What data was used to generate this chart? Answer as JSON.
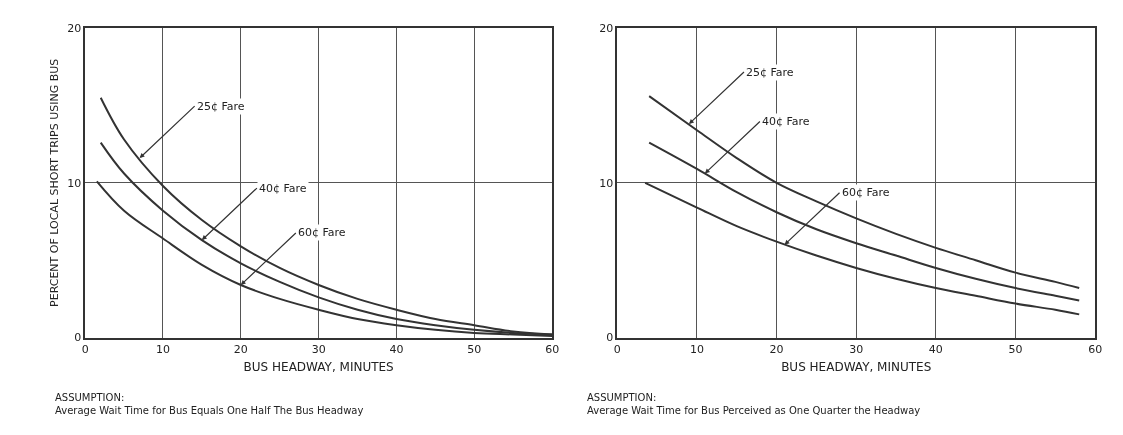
{
  "chart_data": [
    {
      "type": "line",
      "xlabel": "BUS HEADWAY, MINUTES",
      "ylabel": "PERCENT OF LOCAL SHORT TRIPS USING BUS",
      "xlim": [
        0,
        60
      ],
      "ylim": [
        0,
        20
      ],
      "xticks": [
        0,
        10,
        20,
        30,
        40,
        50,
        60
      ],
      "yticks": [
        0,
        10,
        20
      ],
      "grid": true,
      "line_style": "solid",
      "series": [
        {
          "color": "#333333",
          "x": [
            2,
            5,
            10,
            15,
            20,
            25,
            30,
            35,
            40,
            45,
            50,
            55,
            60
          ],
          "values": [
            15.5,
            12.8,
            9.8,
            7.6,
            5.9,
            4.5,
            3.4,
            2.5,
            1.8,
            1.2,
            0.8,
            0.4,
            0.2
          ]
        },
        {
          "color": "#333333",
          "x": [
            2,
            5,
            10,
            15,
            20,
            25,
            30,
            35,
            40,
            45,
            50,
            55,
            60
          ],
          "values": [
            12.6,
            10.6,
            8.2,
            6.3,
            4.8,
            3.6,
            2.6,
            1.8,
            1.2,
            0.8,
            0.5,
            0.3,
            0.2
          ]
        },
        {
          "color": "#333333",
          "x": [
            1.5,
            5,
            10,
            15,
            20,
            25,
            30,
            35,
            40,
            45,
            50,
            55,
            60
          ],
          "values": [
            10.1,
            8.2,
            6.4,
            4.7,
            3.4,
            2.5,
            1.8,
            1.2,
            0.8,
            0.5,
            0.3,
            0.2,
            0.1
          ]
        }
      ],
      "annotations": [
        {
          "text": "25¢ Fare",
          "x": 7,
          "y": 11.6
        },
        {
          "text": "40¢ Fare",
          "x": 15,
          "y": 6.3
        },
        {
          "text": "60¢ Fare",
          "x": 20,
          "y": 3.4
        },
        "ASSUMPTION:\nAverage Wait Time for Bus Equals One Half The Bus Headway"
      ]
    },
    {
      "type": "line",
      "xlabel": "BUS HEADWAY, MINUTES",
      "xlim": [
        0,
        60
      ],
      "ylim": [
        0,
        20
      ],
      "xticks": [
        0,
        10,
        20,
        30,
        40,
        50,
        60
      ],
      "yticks": [
        0,
        10,
        20
      ],
      "grid": true,
      "line_style": "solid",
      "series": [
        {
          "color": "#333333",
          "x": [
            4,
            10,
            15,
            20,
            25,
            30,
            35,
            40,
            45,
            50,
            55,
            58
          ],
          "values": [
            15.6,
            13.4,
            11.6,
            10.0,
            8.8,
            7.7,
            6.7,
            5.8,
            5.0,
            4.2,
            3.6,
            3.2
          ]
        },
        {
          "color": "#333333",
          "x": [
            4,
            10,
            15,
            20,
            25,
            30,
            35,
            40,
            45,
            50,
            55,
            58
          ],
          "values": [
            12.6,
            10.9,
            9.4,
            8.1,
            7.0,
            6.1,
            5.3,
            4.5,
            3.8,
            3.2,
            2.7,
            2.4
          ]
        },
        {
          "color": "#333333",
          "x": [
            3.5,
            10,
            15,
            20,
            25,
            30,
            35,
            40,
            45,
            50,
            55,
            58
          ],
          "values": [
            10.0,
            8.4,
            7.2,
            6.2,
            5.3,
            4.5,
            3.8,
            3.2,
            2.7,
            2.2,
            1.8,
            1.5
          ]
        }
      ],
      "annotations": [
        {
          "text": "25¢ Fare",
          "x": 9,
          "y": 13.8
        },
        {
          "text": "40¢ Fare",
          "x": 11,
          "y": 10.6
        },
        {
          "text": "60¢ Fare",
          "x": 21,
          "y": 6.0
        },
        "ASSUMPTION:\nAverage Wait Time for Bus Perceived as One Quarter the Headway"
      ]
    }
  ]
}
